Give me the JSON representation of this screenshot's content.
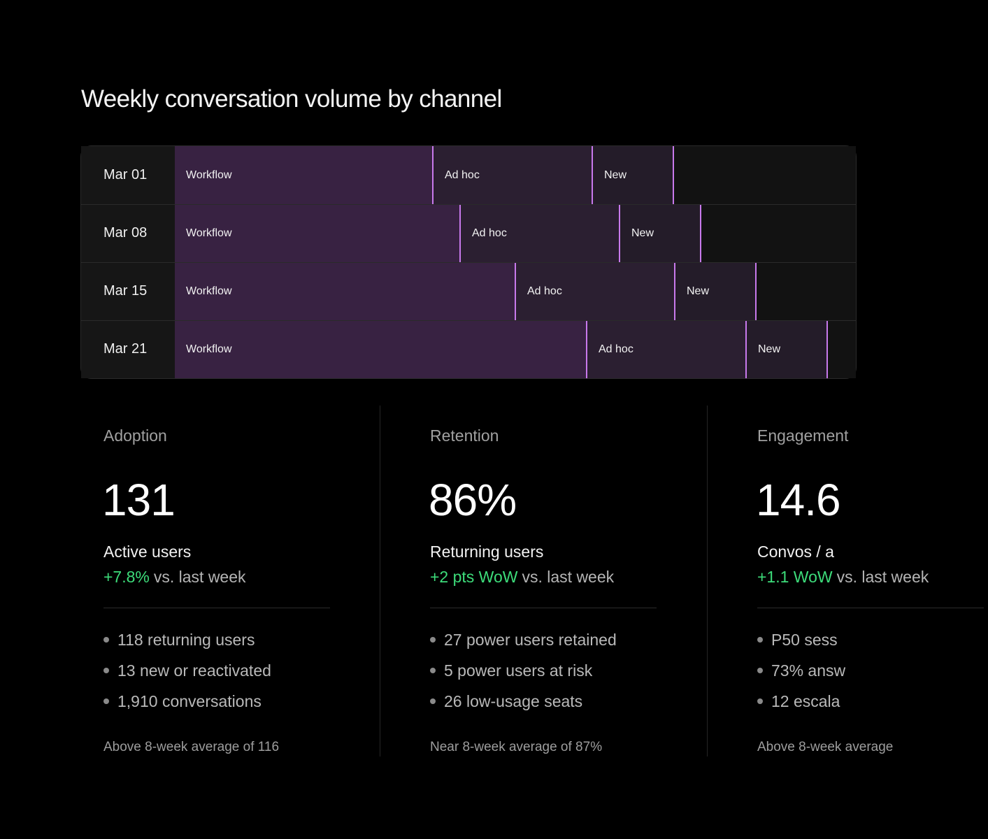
{
  "title": "Weekly conversation volume by channel",
  "chart_data": {
    "type": "bar",
    "orientation": "horizontal-stacked",
    "title": "Weekly conversation volume by channel",
    "categories": [
      "Mar 01",
      "Mar 08",
      "Mar 15",
      "Mar 21"
    ],
    "series": [
      {
        "name": "Workflow",
        "values": [
          368,
          407,
          486,
          588
        ]
      },
      {
        "name": "Ad hoc",
        "values": [
          228,
          228,
          228,
          228
        ]
      },
      {
        "name": "New",
        "values": [
          116,
          116,
          116,
          116
        ]
      }
    ],
    "colors": {
      "Workflow": "#382242",
      "Ad hoc": "#2b1f31",
      "New": "#241c29",
      "divider": "#c879ec"
    }
  },
  "metrics": [
    {
      "heading": "Adoption",
      "value": "131",
      "label": "Active users",
      "delta": "+7.8%",
      "comparison": "vs. last week",
      "bullets": [
        "118 returning users",
        "13 new or reactivated",
        "1,910 conversations"
      ],
      "footnote": "Above 8-week average of 116"
    },
    {
      "heading": "Retention",
      "value": "86%",
      "label": "Returning users",
      "delta": "+2 pts WoW",
      "comparison": "vs. last week",
      "bullets": [
        "27 power users retained",
        "5 power users at risk",
        "26 low-usage seats"
      ],
      "footnote": "Near 8-week average of 87%"
    },
    {
      "heading": "Engagement",
      "value": "14.6",
      "label": "Convos / a",
      "delta": "+1.1 WoW",
      "comparison": "vs. last week",
      "bullets": [
        "P50 sess",
        "73% answ",
        "12 escala"
      ],
      "footnote": "Above 8-week average"
    }
  ],
  "colors": {
    "positive": "#3ddc7a",
    "accent": "#c879ec",
    "background": "#000000"
  }
}
